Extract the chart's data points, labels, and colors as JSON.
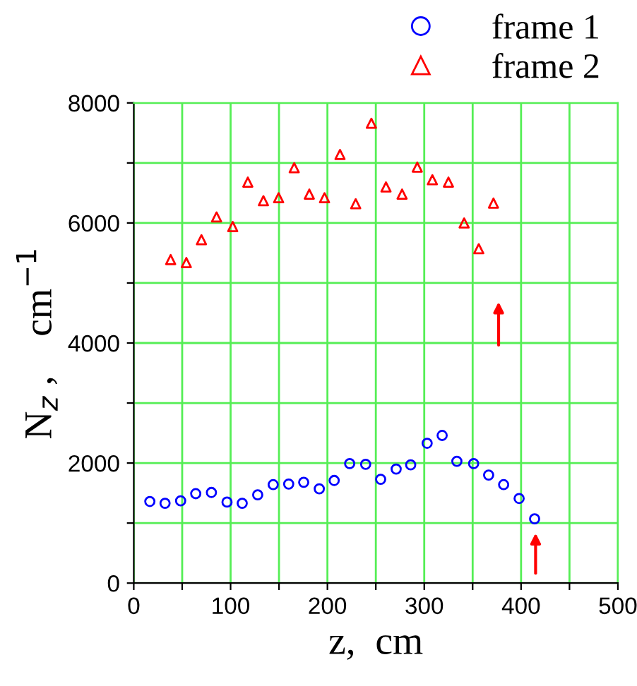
{
  "chart_data": {
    "type": "scatter",
    "xlabel": "z,  cm",
    "ylabel": "N$_{z}$ ,    cm$^{−1}$",
    "xlim": [
      0,
      500
    ],
    "ylim": [
      0,
      8000
    ],
    "xticks": [
      0,
      {
        "value": 50,
        "label": null
      },
      100,
      {
        "value": 150,
        "label": null
      },
      200,
      {
        "value": 250,
        "label": null
      },
      300,
      {
        "value": 350,
        "label": null
      },
      400,
      {
        "value": 450,
        "label": null
      },
      500
    ],
    "yticks": [
      0,
      {
        "value": 1000,
        "label": null
      },
      2000,
      {
        "value": 3000,
        "label": null
      },
      4000,
      {
        "value": 5000,
        "label": null
      },
      6000,
      {
        "value": 7000,
        "label": null
      },
      8000
    ],
    "grid": true,
    "legend": "top right",
    "series": [
      {
        "name": "frame 1",
        "color": "#0000ff",
        "marker": "circle",
        "x": [
          16.6,
          32.3,
          48.4,
          64,
          80.2,
          96.3,
          112,
          128,
          144,
          160,
          175.5,
          191.6,
          207,
          223,
          239.5,
          255,
          271,
          286,
          303,
          318.5,
          333.7,
          351,
          366.5,
          382,
          398,
          414
        ],
        "values": [
          1360,
          1330,
          1370,
          1490,
          1510,
          1350,
          1330,
          1470,
          1640,
          1650,
          1680,
          1570,
          1710,
          1990,
          1980,
          1730,
          1900,
          1970,
          2330,
          2460,
          2030,
          1990,
          1800,
          1640,
          1410,
          1070
        ]
      },
      {
        "name": "frame 2",
        "color": "#ff0000",
        "marker": "triangle",
        "x": [
          38.1,
          54.3,
          69.9,
          85.5,
          102.2,
          117.8,
          133.9,
          149.6,
          165.7,
          181.3,
          197,
          213,
          229.2,
          245.4,
          260.5,
          277.1,
          292.8,
          308.4,
          325,
          341.2,
          356.3,
          371.5
        ],
        "values": [
          5390,
          5340,
          5720,
          6100,
          5940,
          6680,
          6370,
          6420,
          6920,
          6480,
          6420,
          7140,
          6320,
          7660,
          6600,
          6480,
          6930,
          6720,
          6680,
          6000,
          5570,
          6330
        ]
      }
    ]
  }
}
